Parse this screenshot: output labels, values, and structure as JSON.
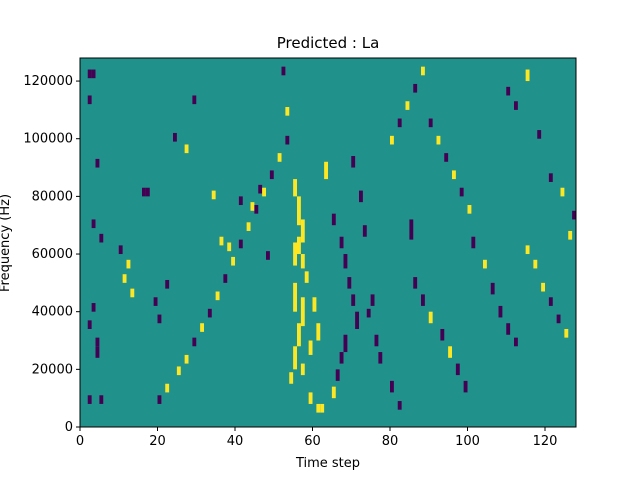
{
  "chart_data": {
    "type": "heatmap",
    "title": "Predicted : La",
    "xlabel": "Time step",
    "ylabel": "Frequency (Hz)",
    "xlim": [
      0,
      128
    ],
    "ylim": [
      0,
      128000
    ],
    "x_ticks": [
      0,
      20,
      40,
      60,
      80,
      100,
      120
    ],
    "x_tick_labels": [
      "0",
      "20",
      "40",
      "60",
      "80",
      "100",
      "120"
    ],
    "y_ticks": [
      0,
      20000,
      40000,
      60000,
      80000,
      100000,
      120000
    ],
    "y_tick_labels": [
      "0",
      "20000",
      "40000",
      "60000",
      "80000",
      "100000",
      "120000"
    ],
    "grid": false,
    "legend": "none",
    "colormap": "viridis",
    "colors": {
      "background_value": "#21918c",
      "low_value": "#440154",
      "high_value": "#fde725"
    },
    "value_levels": [
      "low",
      "mid",
      "high"
    ],
    "note_cells_units": "each cell: [time_step, frequency_hz_start, frequency_hz_end, level]",
    "cells": [
      [
        2,
        121000,
        124000,
        "low"
      ],
      [
        3,
        121000,
        124000,
        "low"
      ],
      [
        2,
        112000,
        115000,
        "low"
      ],
      [
        4,
        90000,
        93000,
        "low"
      ],
      [
        3,
        69000,
        72000,
        "low"
      ],
      [
        5,
        64000,
        67000,
        "low"
      ],
      [
        3,
        40000,
        43000,
        "low"
      ],
      [
        2,
        34000,
        37000,
        "low"
      ],
      [
        4,
        28000,
        31000,
        "low"
      ],
      [
        4,
        24000,
        28000,
        "low"
      ],
      [
        2,
        8000,
        11000,
        "low"
      ],
      [
        5,
        8000,
        11000,
        "low"
      ],
      [
        10,
        60000,
        63000,
        "low"
      ],
      [
        12,
        55000,
        58000,
        "high"
      ],
      [
        11,
        50000,
        53000,
        "high"
      ],
      [
        13,
        45000,
        48000,
        "high"
      ],
      [
        16,
        80000,
        83000,
        "low"
      ],
      [
        17,
        80000,
        83000,
        "low"
      ],
      [
        19,
        42000,
        45000,
        "low"
      ],
      [
        20,
        36000,
        39000,
        "low"
      ],
      [
        22,
        48000,
        51000,
        "low"
      ],
      [
        24,
        99000,
        102000,
        "low"
      ],
      [
        27,
        95000,
        98000,
        "high"
      ],
      [
        29,
        112000,
        115000,
        "low"
      ],
      [
        34,
        79000,
        82000,
        "high"
      ],
      [
        36,
        63000,
        66000,
        "high"
      ],
      [
        38,
        61000,
        64000,
        "high"
      ],
      [
        41,
        77000,
        80000,
        "low"
      ],
      [
        44,
        75000,
        78000,
        "high"
      ],
      [
        46,
        81000,
        84000,
        "low"
      ],
      [
        48,
        58000,
        61000,
        "low"
      ],
      [
        52,
        122000,
        125000,
        "low"
      ],
      [
        53,
        108000,
        111000,
        "high"
      ],
      [
        55,
        80000,
        86000,
        "high"
      ],
      [
        56,
        70000,
        80000,
        "high"
      ],
      [
        57,
        64000,
        72000,
        "high"
      ],
      [
        56,
        60000,
        66000,
        "high"
      ],
      [
        55,
        56000,
        64000,
        "high"
      ],
      [
        57,
        55000,
        60000,
        "high"
      ],
      [
        58,
        50000,
        54000,
        "high"
      ],
      [
        55,
        40000,
        50000,
        "high"
      ],
      [
        57,
        35000,
        45000,
        "high"
      ],
      [
        56,
        28000,
        36000,
        "high"
      ],
      [
        55,
        20000,
        28000,
        "high"
      ],
      [
        57,
        18000,
        22000,
        "high"
      ],
      [
        54,
        15000,
        19000,
        "high"
      ],
      [
        59,
        8000,
        12000,
        "high"
      ],
      [
        61,
        5000,
        8000,
        "high"
      ],
      [
        62,
        5000,
        8000,
        "high"
      ],
      [
        60,
        40000,
        45000,
        "high"
      ],
      [
        61,
        30000,
        36000,
        "high"
      ],
      [
        59,
        25000,
        30000,
        "high"
      ],
      [
        63,
        86000,
        92000,
        "high"
      ],
      [
        65,
        70000,
        74000,
        "low"
      ],
      [
        67,
        62000,
        66000,
        "low"
      ],
      [
        68,
        55000,
        60000,
        "low"
      ],
      [
        69,
        48000,
        52000,
        "low"
      ],
      [
        70,
        42000,
        46000,
        "low"
      ],
      [
        71,
        34000,
        40000,
        "low"
      ],
      [
        68,
        26000,
        32000,
        "low"
      ],
      [
        67,
        22000,
        26000,
        "low"
      ],
      [
        66,
        16000,
        20000,
        "low"
      ],
      [
        65,
        10000,
        14000,
        "high"
      ],
      [
        70,
        90000,
        94000,
        "low"
      ],
      [
        72,
        78000,
        82000,
        "low"
      ],
      [
        73,
        66000,
        70000,
        "low"
      ],
      [
        75,
        42000,
        46000,
        "low"
      ],
      [
        74,
        38000,
        41000,
        "low"
      ],
      [
        76,
        28000,
        32000,
        "low"
      ],
      [
        77,
        22000,
        26000,
        "low"
      ],
      [
        80,
        12000,
        16000,
        "low"
      ],
      [
        82,
        6000,
        9000,
        "low"
      ],
      [
        85,
        65000,
        72000,
        "low"
      ],
      [
        86,
        48000,
        52000,
        "low"
      ],
      [
        88,
        42000,
        46000,
        "low"
      ],
      [
        90,
        36000,
        40000,
        "high"
      ],
      [
        93,
        30000,
        34000,
        "low"
      ],
      [
        95,
        24000,
        28000,
        "high"
      ],
      [
        97,
        18000,
        22000,
        "low"
      ],
      [
        99,
        12000,
        16000,
        "low"
      ],
      [
        101,
        62000,
        66000,
        "low"
      ],
      [
        104,
        55000,
        58000,
        "high"
      ],
      [
        106,
        46000,
        50000,
        "low"
      ],
      [
        108,
        38000,
        42000,
        "low"
      ],
      [
        110,
        32000,
        36000,
        "low"
      ],
      [
        112,
        28000,
        31000,
        "low"
      ],
      [
        115,
        60000,
        63000,
        "high"
      ],
      [
        117,
        55000,
        58000,
        "high"
      ],
      [
        119,
        47000,
        50000,
        "high"
      ],
      [
        121,
        42000,
        45000,
        "low"
      ],
      [
        123,
        36000,
        39000,
        "low"
      ],
      [
        125,
        31000,
        34000,
        "high"
      ],
      [
        110,
        115000,
        118000,
        "low"
      ],
      [
        112,
        110000,
        113000,
        "low"
      ],
      [
        115,
        120000,
        124000,
        "high"
      ],
      [
        118,
        100000,
        103000,
        "low"
      ],
      [
        121,
        85000,
        88000,
        "low"
      ],
      [
        124,
        80000,
        83000,
        "high"
      ],
      [
        127,
        72000,
        75000,
        "low"
      ],
      [
        126,
        65000,
        68000,
        "high"
      ],
      [
        20,
        8000,
        11000,
        "low"
      ],
      [
        22,
        12000,
        15000,
        "high"
      ],
      [
        25,
        18000,
        21000,
        "high"
      ],
      [
        27,
        22000,
        25000,
        "high"
      ],
      [
        29,
        28000,
        31000,
        "low"
      ],
      [
        31,
        33000,
        36000,
        "high"
      ],
      [
        33,
        38000,
        41000,
        "low"
      ],
      [
        35,
        44000,
        47000,
        "high"
      ],
      [
        37,
        50000,
        53000,
        "low"
      ],
      [
        39,
        56000,
        59000,
        "high"
      ],
      [
        41,
        62000,
        65000,
        "low"
      ],
      [
        43,
        68000,
        71000,
        "high"
      ],
      [
        45,
        74000,
        77000,
        "low"
      ],
      [
        47,
        80000,
        83000,
        "high"
      ],
      [
        49,
        86000,
        89000,
        "low"
      ],
      [
        51,
        92000,
        95000,
        "high"
      ],
      [
        53,
        98000,
        101000,
        "low"
      ],
      [
        80,
        98000,
        101000,
        "high"
      ],
      [
        82,
        104000,
        107000,
        "low"
      ],
      [
        84,
        110000,
        113000,
        "high"
      ],
      [
        86,
        116000,
        119000,
        "low"
      ],
      [
        88,
        122000,
        125000,
        "high"
      ],
      [
        90,
        104000,
        107000,
        "low"
      ],
      [
        92,
        98000,
        101000,
        "high"
      ],
      [
        94,
        92000,
        95000,
        "low"
      ],
      [
        96,
        86000,
        89000,
        "high"
      ],
      [
        98,
        80000,
        83000,
        "low"
      ],
      [
        100,
        74000,
        77000,
        "high"
      ]
    ]
  },
  "plot_id": "chart-main"
}
